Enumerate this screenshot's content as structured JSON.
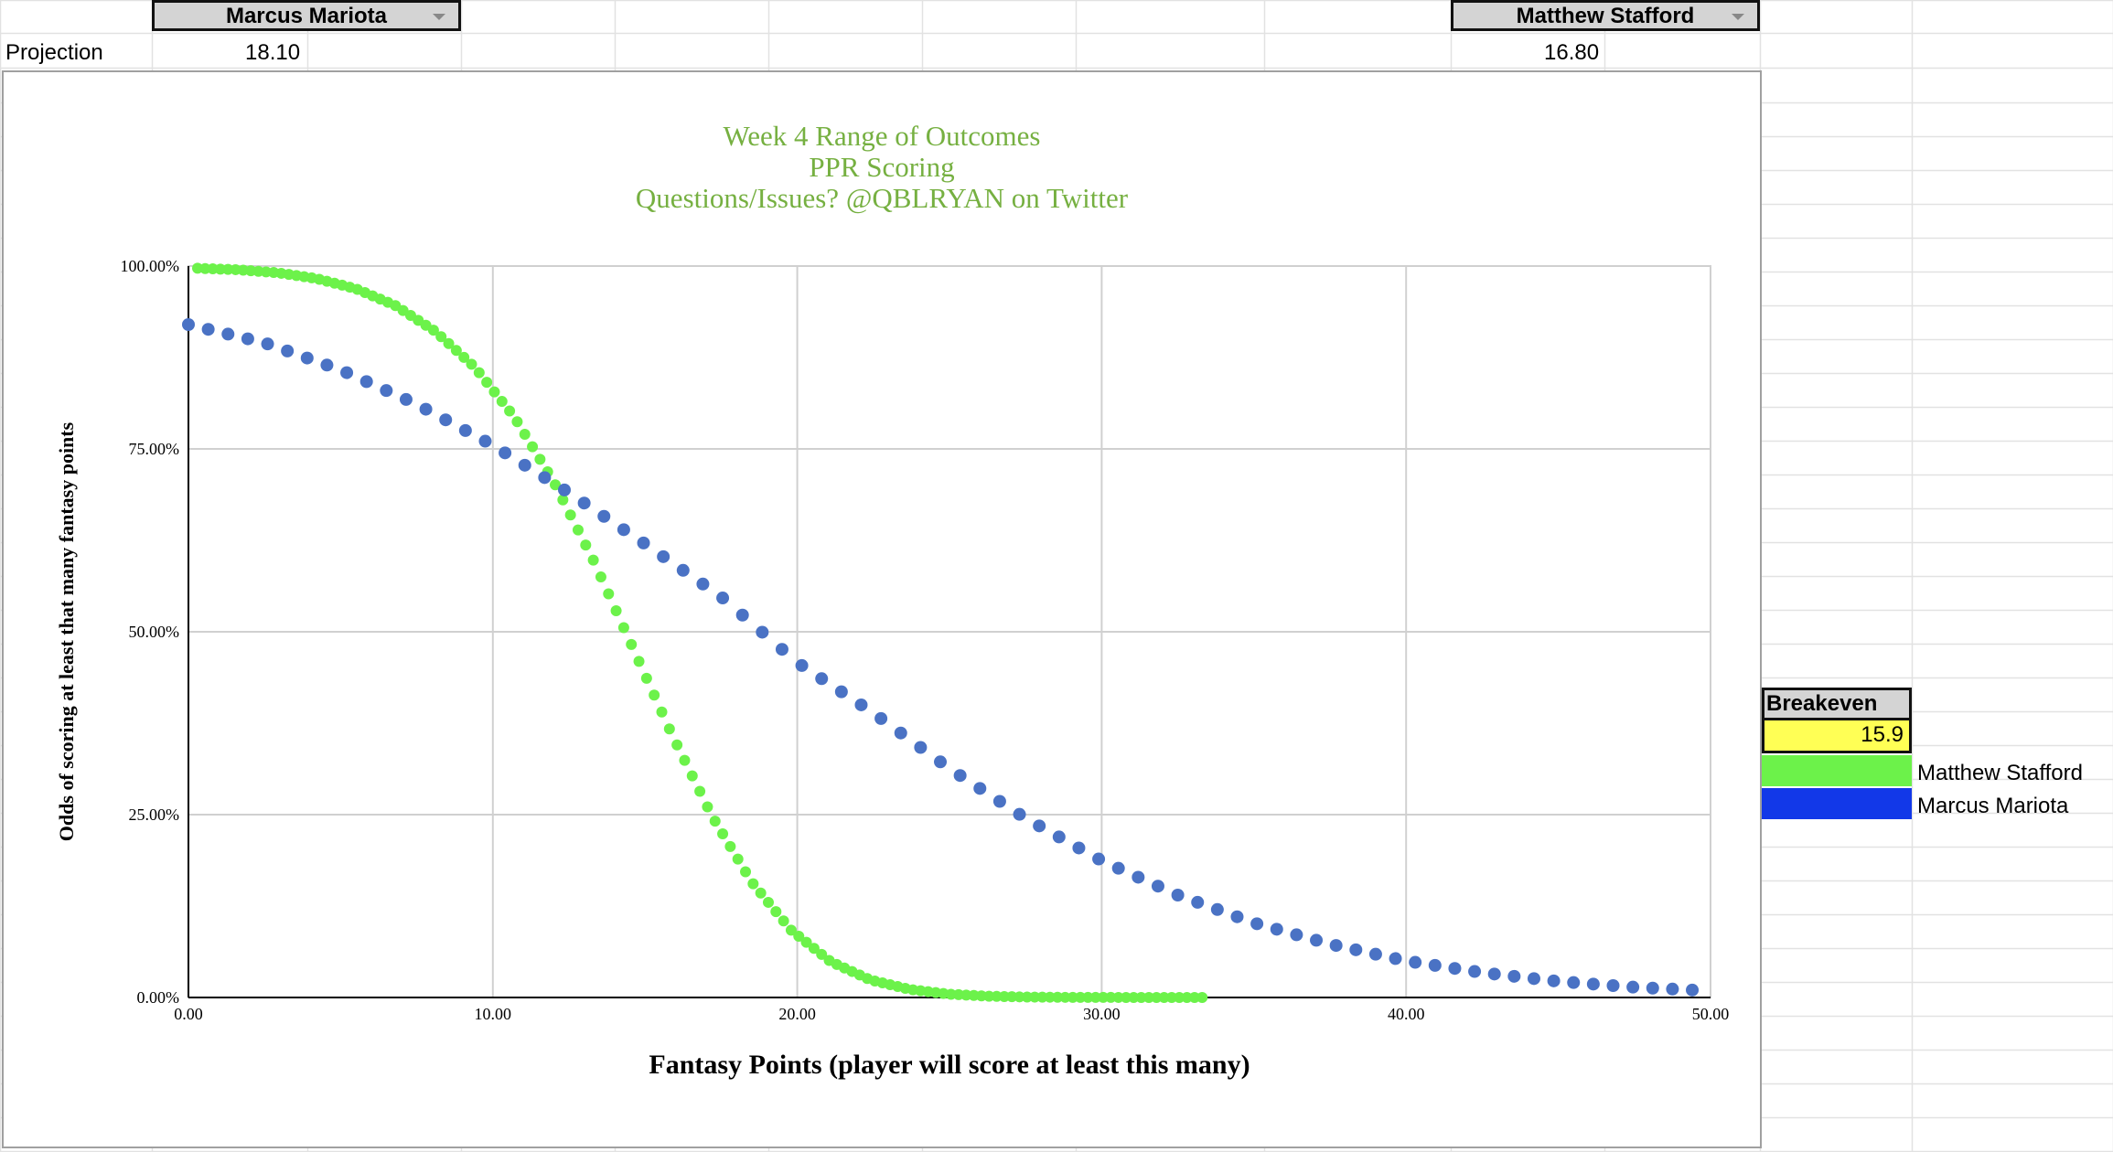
{
  "sheet": {
    "player_a": "Marcus Mariota",
    "player_b": "Matthew Stafford",
    "row_label": "Projection",
    "projection_a": "18.10",
    "projection_b": "16.80"
  },
  "breakeven": {
    "header": "Breakeven",
    "value": "15.9"
  },
  "legend": {
    "items": [
      {
        "label": "Matthew Stafford",
        "color": "#6cf24a"
      },
      {
        "label": "Marcus Mariota",
        "color": "#1238e8"
      }
    ]
  },
  "colors": {
    "title": "#76b041",
    "series_stafford": "#6cf24a",
    "series_mariota": "#4a72c4",
    "breakeven_fill": "#ffff55",
    "header_fill": "#d4d4d4",
    "gridline": "#d0d0d0"
  },
  "chart_data": {
    "type": "scatter",
    "title_lines": [
      "Week 4 Range of Outcomes",
      "PPR Scoring",
      "Questions/Issues? @QBLRYAN on Twitter"
    ],
    "xlabel": "Fantasy Points (player will score at least this many)",
    "ylabel": "Odds of scoring at least that many fantasy points",
    "xlim": [
      0,
      50
    ],
    "ylim": [
      0,
      1
    ],
    "x_ticks": [
      "0.00",
      "10.00",
      "20.00",
      "30.00",
      "40.00",
      "50.00"
    ],
    "y_ticks": [
      "0.00%",
      "25.00%",
      "50.00%",
      "75.00%",
      "100.00%"
    ],
    "grid": true,
    "legend": "none",
    "series": [
      {
        "name": "Matthew Stafford",
        "x": [
          0.3,
          1.6,
          2.9,
          4.2,
          5.5,
          6.8,
          8.1,
          9.4,
          10.7,
          12.0,
          13.3,
          14.6,
          15.9,
          17.2,
          18.5,
          19.8,
          21.1,
          22.4,
          23.7,
          25.0,
          26.3,
          27.6,
          28.9,
          30.2,
          31.5,
          32.8,
          33.3
        ],
        "y": [
          0.997,
          0.995,
          0.991,
          0.983,
          0.969,
          0.946,
          0.911,
          0.862,
          0.794,
          0.705,
          0.598,
          0.478,
          0.358,
          0.248,
          0.158,
          0.092,
          0.049,
          0.024,
          0.011,
          0.0045,
          0.0017,
          0.0006,
          0.0002,
          0.0001,
          0.0,
          0.0,
          0.0
        ]
      },
      {
        "name": "Marcus Mariota",
        "x": [
          0.0,
          2.5,
          5.0,
          7.5,
          10.0,
          12.5,
          15.0,
          17.5,
          20.0,
          22.5,
          25.0,
          27.5,
          30.0,
          32.5,
          35.0,
          37.5,
          40.0,
          42.5,
          45.0,
          47.5,
          50.0
        ],
        "y": [
          0.92,
          0.895,
          0.858,
          0.811,
          0.755,
          0.69,
          0.62,
          0.548,
          0.458,
          0.389,
          0.313,
          0.245,
          0.187,
          0.14,
          0.102,
          0.073,
          0.05,
          0.034,
          0.022,
          0.014,
          0.009
        ]
      }
    ]
  }
}
